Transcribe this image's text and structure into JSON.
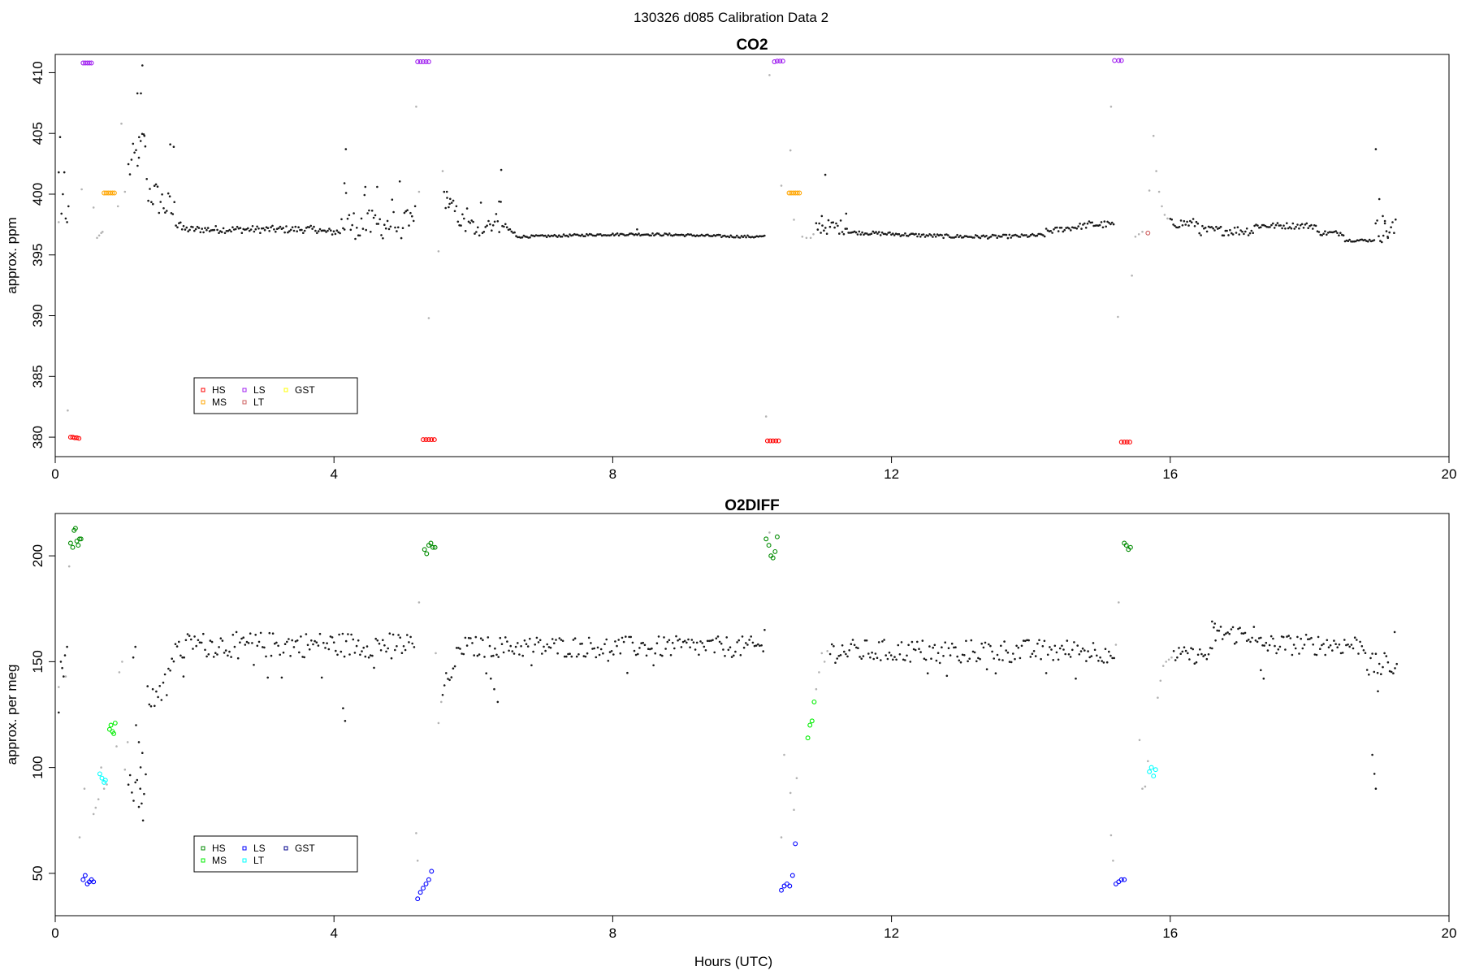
{
  "figure_title": "130326   d085   Calibration Data 2",
  "xlabel": "Hours (UTC)",
  "chart_data": [
    {
      "type": "scatter",
      "title": "CO2",
      "xlabel": "",
      "ylabel": "approx. ppm",
      "xlim": [
        0,
        20
      ],
      "ylim": [
        378.4,
        411.5
      ],
      "xticks": [
        0,
        4,
        8,
        12,
        16,
        20
      ],
      "yticks": [
        380,
        385,
        390,
        395,
        400,
        405,
        410
      ],
      "grid": false,
      "legend_position": "bottom-left",
      "legend": [
        {
          "label": "HS",
          "color": "#ff0000"
        },
        {
          "label": "MS",
          "color": "#ffa500"
        },
        {
          "label": "LS",
          "color": "#a020f0"
        },
        {
          "label": "LT",
          "color": "#cd5c5c"
        },
        {
          "label": "GST",
          "color": "#ffff00"
        }
      ],
      "calibration_series": [
        {
          "name": "HS",
          "color": "#ff0000",
          "points": [
            [
              0.22,
              380.0
            ],
            [
              0.25,
              380.0
            ],
            [
              0.28,
              379.95
            ],
            [
              0.31,
              379.95
            ],
            [
              0.34,
              379.9
            ],
            [
              5.28,
              379.8
            ],
            [
              5.32,
              379.8
            ],
            [
              5.36,
              379.8
            ],
            [
              5.4,
              379.8
            ],
            [
              5.44,
              379.8
            ],
            [
              10.22,
              379.7
            ],
            [
              10.26,
              379.7
            ],
            [
              10.3,
              379.7
            ],
            [
              10.34,
              379.7
            ],
            [
              10.38,
              379.7
            ],
            [
              15.3,
              379.6
            ],
            [
              15.34,
              379.6
            ],
            [
              15.38,
              379.6
            ],
            [
              15.42,
              379.6
            ]
          ]
        },
        {
          "name": "MS",
          "color": "#ffa500",
          "points": [
            [
              0.7,
              400.1
            ],
            [
              0.73,
              400.1
            ],
            [
              0.76,
              400.1
            ],
            [
              0.79,
              400.1
            ],
            [
              0.82,
              400.1
            ],
            [
              0.85,
              400.1
            ],
            [
              10.53,
              400.1
            ],
            [
              10.56,
              400.1
            ],
            [
              10.59,
              400.1
            ],
            [
              10.62,
              400.1
            ],
            [
              10.65,
              400.1
            ],
            [
              10.68,
              400.1
            ]
          ]
        },
        {
          "name": "LS",
          "color": "#a020f0",
          "points": [
            [
              0.4,
              410.8
            ],
            [
              0.43,
              410.8
            ],
            [
              0.46,
              410.8
            ],
            [
              0.49,
              410.8
            ],
            [
              0.52,
              410.8
            ],
            [
              5.2,
              410.9
            ],
            [
              5.24,
              410.9
            ],
            [
              5.28,
              410.9
            ],
            [
              5.32,
              410.9
            ],
            [
              5.36,
              410.9
            ],
            [
              10.32,
              410.9
            ],
            [
              10.36,
              410.95
            ],
            [
              10.4,
              410.95
            ],
            [
              10.44,
              410.95
            ],
            [
              15.2,
              411.0
            ],
            [
              15.26,
              411.0
            ],
            [
              15.3,
              411.0
            ]
          ]
        },
        {
          "name": "LT",
          "color": "#cd5c5c",
          "points": [
            [
              15.68,
              396.8
            ]
          ]
        }
      ],
      "transition_points": [
        [
          0.05,
          397.7
        ],
        [
          0.18,
          382.2
        ],
        [
          0.38,
          400.4
        ],
        [
          0.55,
          398.9
        ],
        [
          0.6,
          396.4
        ],
        [
          0.63,
          396.6
        ],
        [
          0.66,
          396.8
        ],
        [
          0.68,
          396.9
        ],
        [
          0.9,
          399.0
        ],
        [
          0.95,
          405.8
        ],
        [
          1.0,
          400.2
        ],
        [
          5.18,
          407.2
        ],
        [
          5.22,
          400.2
        ],
        [
          5.36,
          389.8
        ],
        [
          5.5,
          395.3
        ],
        [
          5.56,
          401.9
        ],
        [
          10.2,
          381.7
        ],
        [
          10.25,
          409.8
        ],
        [
          10.42,
          400.7
        ],
        [
          10.55,
          403.6
        ],
        [
          10.6,
          397.9
        ],
        [
          10.72,
          396.5
        ],
        [
          10.78,
          396.4
        ],
        [
          10.84,
          396.4
        ],
        [
          10.88,
          396.7
        ],
        [
          15.15,
          407.2
        ],
        [
          15.25,
          389.9
        ],
        [
          15.45,
          393.3
        ],
        [
          15.5,
          396.5
        ],
        [
          15.55,
          396.7
        ],
        [
          15.6,
          396.9
        ],
        [
          15.7,
          400.3
        ],
        [
          15.76,
          404.8
        ],
        [
          15.8,
          401.9
        ],
        [
          15.84,
          400.2
        ],
        [
          15.88,
          399.0
        ],
        [
          15.92,
          398.3
        ],
        [
          15.96,
          398.0
        ]
      ]
    },
    {
      "type": "scatter",
      "title": "O2DIFF",
      "xlabel": "Hours (UTC)",
      "ylabel": "approx. per meg",
      "xlim": [
        0,
        20
      ],
      "ylim": [
        30,
        220
      ],
      "xticks": [
        0,
        4,
        8,
        12,
        16,
        20
      ],
      "yticks": [
        50,
        100,
        150,
        200
      ],
      "grid": false,
      "legend_position": "bottom-left",
      "legend": [
        {
          "label": "HS",
          "color": "#008b00"
        },
        {
          "label": "MS",
          "color": "#00ee00"
        },
        {
          "label": "LS",
          "color": "#0000ff"
        },
        {
          "label": "LT",
          "color": "#00ffff"
        },
        {
          "label": "GST",
          "color": "#00008b"
        }
      ],
      "calibration_series": [
        {
          "name": "HS",
          "color": "#008b00",
          "points": [
            [
              0.22,
              206
            ],
            [
              0.25,
              204
            ],
            [
              0.27,
              212
            ],
            [
              0.29,
              213
            ],
            [
              0.31,
              207
            ],
            [
              0.33,
              205
            ],
            [
              0.35,
              208
            ],
            [
              0.37,
              208
            ],
            [
              5.3,
              203
            ],
            [
              5.33,
              201
            ],
            [
              5.36,
              205
            ],
            [
              5.39,
              206
            ],
            [
              5.42,
              204
            ],
            [
              5.45,
              204
            ],
            [
              10.2,
              208
            ],
            [
              10.24,
              205
            ],
            [
              10.27,
              200
            ],
            [
              10.3,
              199
            ],
            [
              10.33,
              202
            ],
            [
              10.36,
              209
            ],
            [
              15.34,
              206
            ],
            [
              15.37,
              205
            ],
            [
              15.4,
              203
            ],
            [
              15.43,
              204
            ]
          ]
        },
        {
          "name": "MS",
          "color": "#00ee00",
          "points": [
            [
              0.78,
              118
            ],
            [
              0.8,
              120
            ],
            [
              0.82,
              117
            ],
            [
              0.84,
              116
            ],
            [
              0.86,
              121
            ],
            [
              10.8,
              114
            ],
            [
              10.83,
              120
            ],
            [
              10.86,
              122
            ],
            [
              10.89,
              131
            ]
          ]
        },
        {
          "name": "LS",
          "color": "#0000ff",
          "points": [
            [
              0.4,
              47
            ],
            [
              0.43,
              49
            ],
            [
              0.46,
              45
            ],
            [
              0.49,
              46
            ],
            [
              0.52,
              47
            ],
            [
              0.55,
              46
            ],
            [
              5.2,
              38
            ],
            [
              5.24,
              41
            ],
            [
              5.28,
              43
            ],
            [
              5.32,
              45
            ],
            [
              5.36,
              47
            ],
            [
              5.4,
              51
            ],
            [
              10.42,
              42
            ],
            [
              10.46,
              44
            ],
            [
              10.5,
              45
            ],
            [
              10.54,
              44
            ],
            [
              10.58,
              49
            ],
            [
              10.62,
              64
            ],
            [
              15.22,
              45
            ],
            [
              15.26,
              46
            ],
            [
              15.3,
              47
            ],
            [
              15.34,
              47
            ]
          ]
        },
        {
          "name": "LT",
          "color": "#00ffff",
          "points": [
            [
              0.64,
              97
            ],
            [
              0.67,
              95
            ],
            [
              0.7,
              93
            ],
            [
              0.72,
              94
            ],
            [
              15.7,
              98
            ],
            [
              15.73,
              100
            ],
            [
              15.76,
              96
            ],
            [
              15.79,
              99
            ]
          ]
        }
      ],
      "transition_points": [
        [
          0.05,
          138
        ],
        [
          0.15,
          143
        ],
        [
          0.2,
          195
        ],
        [
          0.35,
          67
        ],
        [
          0.42,
          90
        ],
        [
          0.55,
          78
        ],
        [
          0.58,
          81
        ],
        [
          0.62,
          85
        ],
        [
          0.66,
          100
        ],
        [
          0.7,
          90
        ],
        [
          0.74,
          92
        ],
        [
          0.88,
          110
        ],
        [
          0.92,
          145
        ],
        [
          0.96,
          150
        ],
        [
          1.0,
          99
        ],
        [
          1.04,
          112
        ],
        [
          5.18,
          69
        ],
        [
          5.2,
          56
        ],
        [
          5.22,
          178
        ],
        [
          5.46,
          154
        ],
        [
          5.5,
          121
        ],
        [
          5.54,
          131
        ],
        [
          10.25,
          211
        ],
        [
          10.42,
          67
        ],
        [
          10.46,
          106
        ],
        [
          10.55,
          88
        ],
        [
          10.6,
          80
        ],
        [
          10.64,
          95
        ],
        [
          10.92,
          137
        ],
        [
          10.96,
          145
        ],
        [
          11.0,
          154
        ],
        [
          11.04,
          150
        ],
        [
          11.08,
          155
        ],
        [
          15.15,
          68
        ],
        [
          15.18,
          56
        ],
        [
          15.22,
          158
        ],
        [
          15.26,
          178
        ],
        [
          15.56,
          113
        ],
        [
          15.6,
          90
        ],
        [
          15.64,
          91
        ],
        [
          15.68,
          103
        ],
        [
          15.82,
          133
        ],
        [
          15.86,
          141
        ],
        [
          15.9,
          148
        ],
        [
          15.94,
          150
        ],
        [
          15.98,
          151
        ],
        [
          16.02,
          152
        ]
      ]
    }
  ]
}
